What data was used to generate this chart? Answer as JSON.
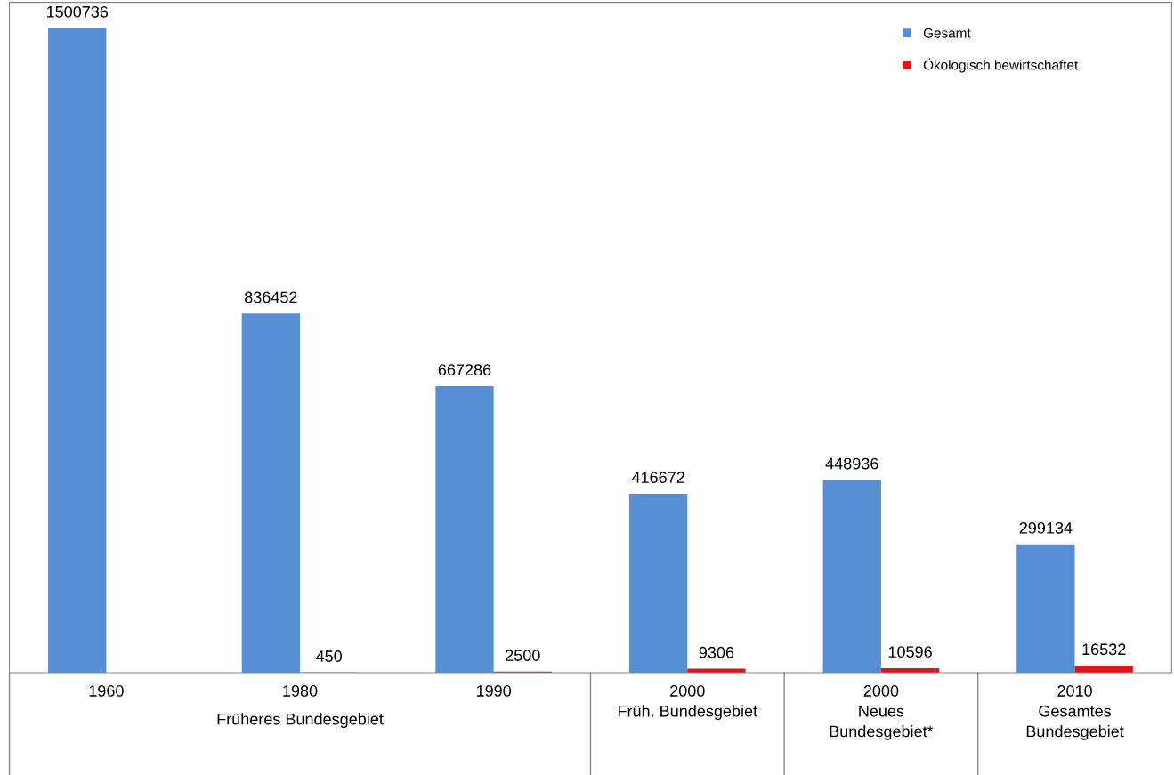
{
  "chart_data": {
    "type": "bar",
    "categories": [
      "1960",
      "1980",
      "1990",
      "2000\nFrüh. Bundesgebiet",
      "2000\nNeues\nBundesgebiet*",
      "2010\nGesamtes\nBundesgebiet"
    ],
    "series": [
      {
        "name": "Gesamt",
        "color": "#558ed5",
        "values": [
          1500736,
          836452,
          667286,
          416672,
          448936,
          299134
        ]
      },
      {
        "name": "Ökologisch bewirtschaftet",
        "color": "#e0141b",
        "values": [
          null,
          450,
          2500,
          9306,
          10596,
          16532
        ]
      }
    ],
    "annotations": [
      "Früheres Bundesgebiet"
    ],
    "data_labels": true,
    "legend": "top right"
  }
}
